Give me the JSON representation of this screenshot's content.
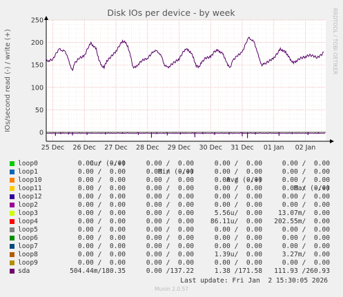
{
  "chart_data": {
    "type": "line",
    "title": "Disk IOs per device - by week",
    "ylabel": "IOs/second read (-) / write (+)",
    "side_label": "RRDTOOL / TOBI OETIKER",
    "ylim": [
      -20,
      250
    ],
    "yticks": [
      0,
      50,
      100,
      150,
      200,
      250
    ],
    "xlim": [
      "2025-12-24T19:00",
      "2026-01-02T15:30"
    ],
    "xticks": [
      {
        "label": "25 Dec",
        "x": "2025-12-25"
      },
      {
        "label": "26 Dec",
        "x": "2025-12-26"
      },
      {
        "label": "27 Dec",
        "x": "2025-12-27"
      },
      {
        "label": "28 Dec",
        "x": "2025-12-28"
      },
      {
        "label": "29 Dec",
        "x": "2025-12-29"
      },
      {
        "label": "30 Dec",
        "x": "2025-12-30"
      },
      {
        "label": "31 Dec",
        "x": "2025-12-31"
      },
      {
        "label": "01 Jan",
        "x": "2026-01-01"
      },
      {
        "label": "02 Jan",
        "x": "2026-01-02"
      }
    ],
    "grid": true,
    "series": [
      {
        "name": "sda",
        "color": "#550066",
        "write": [
          [
            "2025-12-24T19:00",
            158
          ],
          [
            "2025-12-24T21:00",
            160
          ],
          [
            "2025-12-25T00:00",
            162
          ],
          [
            "2025-12-25T03:00",
            178
          ],
          [
            "2025-12-25T05:00",
            185
          ],
          [
            "2025-12-25T07:00",
            183
          ],
          [
            "2025-12-25T09:00",
            180
          ],
          [
            "2025-12-25T11:00",
            172
          ],
          [
            "2025-12-25T13:00",
            148
          ],
          [
            "2025-12-25T15:00",
            140
          ],
          [
            "2025-12-25T17:00",
            155
          ],
          [
            "2025-12-25T20:00",
            165
          ],
          [
            "2025-12-26T00:00",
            170
          ],
          [
            "2025-12-26T03:00",
            190
          ],
          [
            "2025-12-26T05:00",
            198
          ],
          [
            "2025-12-26T07:00",
            192
          ],
          [
            "2025-12-26T09:00",
            185
          ],
          [
            "2025-12-26T11:00",
            162
          ],
          [
            "2025-12-26T13:00",
            148
          ],
          [
            "2025-12-26T15:00",
            145
          ],
          [
            "2025-12-26T17:00",
            158
          ],
          [
            "2025-12-26T20:00",
            168
          ],
          [
            "2025-12-27T00:00",
            180
          ],
          [
            "2025-12-27T03:00",
            195
          ],
          [
            "2025-12-27T05:00",
            203
          ],
          [
            "2025-12-27T07:00",
            200
          ],
          [
            "2025-12-27T09:00",
            192
          ],
          [
            "2025-12-27T11:00",
            170
          ],
          [
            "2025-12-27T13:00",
            146
          ],
          [
            "2025-12-27T15:00",
            144
          ],
          [
            "2025-12-27T17:00",
            152
          ],
          [
            "2025-12-27T20:00",
            160
          ],
          [
            "2025-12-28T00:00",
            165
          ],
          [
            "2025-12-28T03:00",
            175
          ],
          [
            "2025-12-28T05:00",
            182
          ],
          [
            "2025-12-28T07:00",
            180
          ],
          [
            "2025-12-28T09:00",
            177
          ],
          [
            "2025-12-28T11:00",
            165
          ],
          [
            "2025-12-28T13:00",
            150
          ],
          [
            "2025-12-28T15:00",
            144
          ],
          [
            "2025-12-28T17:00",
            148
          ],
          [
            "2025-12-28T20:00",
            155
          ],
          [
            "2025-12-29T00:00",
            163
          ],
          [
            "2025-12-29T03:00",
            178
          ],
          [
            "2025-12-29T05:00",
            186
          ],
          [
            "2025-12-29T07:00",
            182
          ],
          [
            "2025-12-29T09:00",
            178
          ],
          [
            "2025-12-29T11:00",
            165
          ],
          [
            "2025-12-29T13:00",
            148
          ],
          [
            "2025-12-29T15:00",
            145
          ],
          [
            "2025-12-29T17:00",
            155
          ],
          [
            "2025-12-29T20:00",
            165
          ],
          [
            "2025-12-30T00:00",
            168
          ],
          [
            "2025-12-30T03:00",
            180
          ],
          [
            "2025-12-30T05:00",
            182
          ],
          [
            "2025-12-30T07:00",
            180
          ],
          [
            "2025-12-30T09:00",
            175
          ],
          [
            "2025-12-30T11:00",
            165
          ],
          [
            "2025-12-30T13:00",
            148
          ],
          [
            "2025-12-30T15:00",
            146
          ],
          [
            "2025-12-30T17:00",
            160
          ],
          [
            "2025-12-30T20:00",
            170
          ],
          [
            "2025-12-31T00:00",
            178
          ],
          [
            "2025-12-31T03:00",
            200
          ],
          [
            "2025-12-31T05:00",
            210
          ],
          [
            "2025-12-31T07:00",
            207
          ],
          [
            "2025-12-31T09:00",
            200
          ],
          [
            "2025-12-31T11:00",
            185
          ],
          [
            "2025-12-31T13:00",
            162
          ],
          [
            "2025-12-31T15:00",
            150
          ],
          [
            "2025-12-31T17:00",
            152
          ],
          [
            "2025-12-31T20:00",
            158
          ],
          [
            "2026-01-01T00:00",
            165
          ],
          [
            "2026-01-01T03:00",
            177
          ],
          [
            "2026-01-01T05:00",
            185
          ],
          [
            "2026-01-01T07:00",
            182
          ],
          [
            "2026-01-01T09:00",
            178
          ],
          [
            "2026-01-01T11:00",
            170
          ],
          [
            "2026-01-01T13:00",
            160
          ],
          [
            "2026-01-01T15:00",
            155
          ],
          [
            "2026-01-01T17:00",
            158
          ],
          [
            "2026-01-01T20:00",
            165
          ],
          [
            "2026-01-02T00:00",
            168
          ],
          [
            "2026-01-02T03:00",
            172
          ],
          [
            "2026-01-02T06:00",
            170
          ],
          [
            "2026-01-02T09:00",
            166
          ],
          [
            "2026-01-02T12:00",
            172
          ],
          [
            "2026-01-02T14:00",
            178
          ]
        ],
        "read": [
          [
            "2025-12-25T02:00",
            -8
          ],
          [
            "2025-12-25T06:00",
            -4
          ],
          [
            "2025-12-25T12:00",
            -5
          ],
          [
            "2025-12-25T15:00",
            -7
          ],
          [
            "2025-12-26T02:00",
            -6
          ],
          [
            "2025-12-26T16:00",
            -5
          ],
          [
            "2025-12-27T05:00",
            -3
          ],
          [
            "2025-12-27T17:00",
            -6
          ],
          [
            "2025-12-28T03:00",
            -12
          ],
          [
            "2025-12-28T07:00",
            -4
          ],
          [
            "2025-12-28T15:00",
            -7
          ],
          [
            "2025-12-29T01:00",
            -5
          ],
          [
            "2025-12-29T12:00",
            -11
          ],
          [
            "2025-12-29T18:00",
            -4
          ],
          [
            "2025-12-30T03:00",
            -6
          ],
          [
            "2025-12-30T14:00",
            -5
          ],
          [
            "2025-12-31T00:00",
            -9
          ],
          [
            "2025-12-31T04:00",
            -13
          ],
          [
            "2025-12-31T10:00",
            -5
          ],
          [
            "2026-01-01T04:00",
            -8
          ],
          [
            "2026-01-01T14:00",
            -4
          ],
          [
            "2026-01-02T02:00",
            -6
          ],
          [
            "2026-01-02T10:00",
            -3
          ]
        ]
      }
    ]
  },
  "legend": {
    "headers": {
      "cur": "Cur (-/+)",
      "min": "Min (-/+)",
      "avg": "Avg (-/+)",
      "max": "Max (-/+)"
    },
    "rows": [
      {
        "name": "loop0",
        "color": "#00cc00",
        "cur": "0.00 /  0.00",
        "min": "0.00 /  0.00",
        "avg": "0.00 /  0.00",
        "max": "0.00 /  0.00"
      },
      {
        "name": "loop1",
        "color": "#0066b3",
        "cur": "0.00 /  0.00",
        "min": "0.00 /  0.00",
        "avg": "0.00 /  0.00",
        "max": "0.00 /  0.00"
      },
      {
        "name": "loop10",
        "color": "#ff8000",
        "cur": "0.00 /  0.00",
        "min": "0.00 /  0.00",
        "avg": "0.00 /  0.00",
        "max": "0.00 /  0.00"
      },
      {
        "name": "loop11",
        "color": "#ffcc00",
        "cur": "0.00 /  0.00",
        "min": "0.00 /  0.00",
        "avg": "0.00 /  0.00",
        "max": "0.00 /  0.00"
      },
      {
        "name": "loop12",
        "color": "#330099",
        "cur": "0.00 /  0.00",
        "min": "0.00 /  0.00",
        "avg": "0.00 /  0.00",
        "max": "0.00 /  0.00"
      },
      {
        "name": "loop2",
        "color": "#990099",
        "cur": "0.00 /  0.00",
        "min": "0.00 /  0.00",
        "avg": "0.00 /  0.00",
        "max": "0.00 /  0.00"
      },
      {
        "name": "loop3",
        "color": "#ccff00",
        "cur": "0.00 /  0.00",
        "min": "0.00 /  0.00",
        "avg": "5.56u/  0.00",
        "max": "13.07m/  0.00"
      },
      {
        "name": "loop4",
        "color": "#ff0000",
        "cur": "0.00 /  0.00",
        "min": "0.00 /  0.00",
        "avg": "86.11u/  0.00",
        "max": "202.55m/  0.00"
      },
      {
        "name": "loop5",
        "color": "#808080",
        "cur": "0.00 /  0.00",
        "min": "0.00 /  0.00",
        "avg": "0.00 /  0.00",
        "max": "0.00 /  0.00"
      },
      {
        "name": "loop6",
        "color": "#008f00",
        "cur": "0.00 /  0.00",
        "min": "0.00 /  0.00",
        "avg": "0.00 /  0.00",
        "max": "0.00 /  0.00"
      },
      {
        "name": "loop7",
        "color": "#00487d",
        "cur": "0.00 /  0.00",
        "min": "0.00 /  0.00",
        "avg": "0.00 /  0.00",
        "max": "0.00 /  0.00"
      },
      {
        "name": "loop8",
        "color": "#b35a00",
        "cur": "0.00 /  0.00",
        "min": "0.00 /  0.00",
        "avg": "1.39u/  0.00",
        "max": "3.27m/  0.00"
      },
      {
        "name": "loop9",
        "color": "#b38f00",
        "cur": "0.00 /  0.00",
        "min": "0.00 /  0.00",
        "avg": "0.00 /  0.00",
        "max": "0.00 /  0.00"
      },
      {
        "name": "sda",
        "color": "#6b006b",
        "cur": "504.44m/180.35",
        "min": "0.00 /137.22",
        "avg": "1.38 /171.58",
        "max": "111.93 /260.93"
      }
    ]
  },
  "last_update": "Last update: Fri Jan  2 15:30:05 2026",
  "footer": "Munin 2.0.57"
}
